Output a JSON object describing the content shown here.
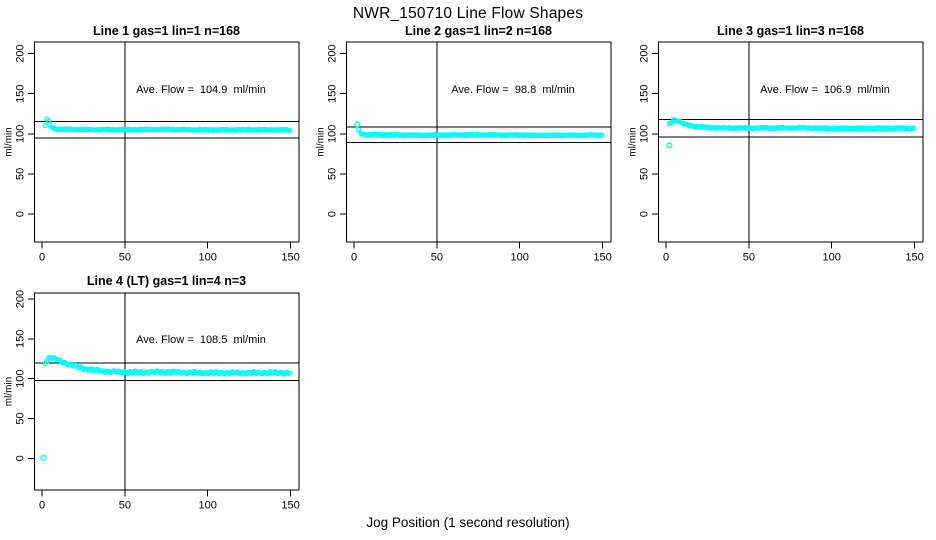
{
  "page": {
    "title": "NWR_150710  Line Flow Shapes",
    "xlabel": "Jog Position (1 second resolution)"
  },
  "colors": {
    "points": "#00ffff",
    "axis": "#000000",
    "background": "#ffffff"
  },
  "chart_data": [
    {
      "type": "scatter",
      "title": "Line 1 gas=1 lin=1 n=168",
      "annotation": "Ave. Flow =  104.9  ml/min",
      "ave_flow_ml_min": 104.9,
      "n": 168,
      "ylabel": "ml/min",
      "x_ticks": [
        0,
        50,
        100,
        150
      ],
      "y_ticks": [
        0,
        50,
        100,
        150,
        200
      ],
      "xlim": [
        0,
        150
      ],
      "ylim": [
        -30,
        210
      ],
      "ref_hlines": [
        115.4,
        94.4
      ],
      "ref_vline": 50,
      "outlier_points": [],
      "profile_points": [
        [
          2,
          110
        ],
        [
          2.5,
          116
        ],
        [
          3,
          119
        ],
        [
          3.5,
          118
        ],
        [
          4,
          114
        ],
        [
          5,
          110
        ],
        [
          6,
          107.5
        ],
        [
          8,
          106
        ],
        [
          12,
          105.5
        ],
        [
          30,
          105.3
        ],
        [
          60,
          105.2
        ],
        [
          90,
          105
        ],
        [
          120,
          105
        ],
        [
          150,
          104.6
        ]
      ],
      "band_halfwidth": 0.9
    },
    {
      "type": "scatter",
      "title": "Line 2 gas=1 lin=2 n=168",
      "annotation": "Ave. Flow =  98.8  ml/min",
      "ave_flow_ml_min": 98.8,
      "n": 168,
      "ylabel": "ml/min",
      "x_ticks": [
        0,
        50,
        100,
        150
      ],
      "y_ticks": [
        0,
        50,
        100,
        150,
        200
      ],
      "xlim": [
        0,
        150
      ],
      "ylim": [
        -30,
        210
      ],
      "ref_hlines": [
        108.7,
        88.9
      ],
      "ref_vline": 50,
      "outlier_points": [
        [
          2,
          111.5
        ]
      ],
      "profile_points": [
        [
          2.8,
          104.5
        ],
        [
          3.5,
          102
        ],
        [
          4,
          101
        ],
        [
          5,
          99.5
        ],
        [
          6.5,
          99
        ],
        [
          9,
          98.7
        ],
        [
          20,
          98.5
        ],
        [
          60,
          98.5
        ],
        [
          100,
          98.4
        ],
        [
          150,
          98.2
        ]
      ],
      "band_halfwidth": 0.9
    },
    {
      "type": "scatter",
      "title": "Line 3 gas=1 lin=3 n=168",
      "annotation": "Ave. Flow =  106.9  ml/min",
      "ave_flow_ml_min": 106.9,
      "n": 168,
      "ylabel": "ml/min",
      "x_ticks": [
        0,
        50,
        100,
        150
      ],
      "y_ticks": [
        0,
        50,
        100,
        150,
        200
      ],
      "xlim": [
        0,
        150
      ],
      "ylim": [
        -30,
        210
      ],
      "ref_hlines": [
        117.6,
        96.2
      ],
      "ref_vline": 50,
      "outlier_points": [
        [
          2,
          85.5
        ]
      ],
      "profile_points": [
        [
          2,
          112
        ],
        [
          3,
          113
        ],
        [
          4,
          116
        ],
        [
          5,
          117.5
        ],
        [
          6,
          117
        ],
        [
          7,
          116
        ],
        [
          9,
          114
        ],
        [
          11,
          112
        ],
        [
          14,
          110.5
        ],
        [
          18,
          109
        ],
        [
          24,
          108
        ],
        [
          32,
          107.5
        ],
        [
          50,
          107.2
        ],
        [
          100,
          107
        ],
        [
          150,
          106.8
        ]
      ],
      "band_halfwidth": 1.0
    },
    {
      "type": "scatter",
      "title": "Line 4 (LT) gas=1 lin=4 n=3",
      "annotation": "Ave. Flow =  108.5  ml/min",
      "ave_flow_ml_min": 108.5,
      "n": 3,
      "ylabel": "ml/min",
      "x_ticks": [
        0,
        50,
        100,
        150
      ],
      "y_ticks": [
        0,
        50,
        100,
        150,
        200
      ],
      "xlim": [
        0,
        150
      ],
      "ylim": [
        -30,
        210
      ],
      "ref_hlines": [
        119.4,
        97.7
      ],
      "ref_vline": 50,
      "outlier_points": [
        [
          1,
          0.5
        ]
      ],
      "profile_points": [
        [
          2,
          119.5
        ],
        [
          3,
          123
        ],
        [
          4,
          125.5
        ],
        [
          5,
          126.5
        ],
        [
          6,
          126
        ],
        [
          7,
          125
        ],
        [
          9,
          123.5
        ],
        [
          11,
          122
        ],
        [
          13,
          120.5
        ],
        [
          15,
          119
        ],
        [
          18,
          117
        ],
        [
          21,
          115
        ],
        [
          24,
          113.5
        ],
        [
          28,
          112
        ],
        [
          32,
          110.8
        ],
        [
          37,
          109.8
        ],
        [
          43,
          109
        ],
        [
          50,
          108.3
        ],
        [
          60,
          107.8
        ],
        [
          75,
          108
        ],
        [
          90,
          107.6
        ],
        [
          110,
          107.8
        ],
        [
          130,
          107.2
        ],
        [
          150,
          106.8
        ]
      ],
      "band_halfwidth": 2.0
    }
  ]
}
